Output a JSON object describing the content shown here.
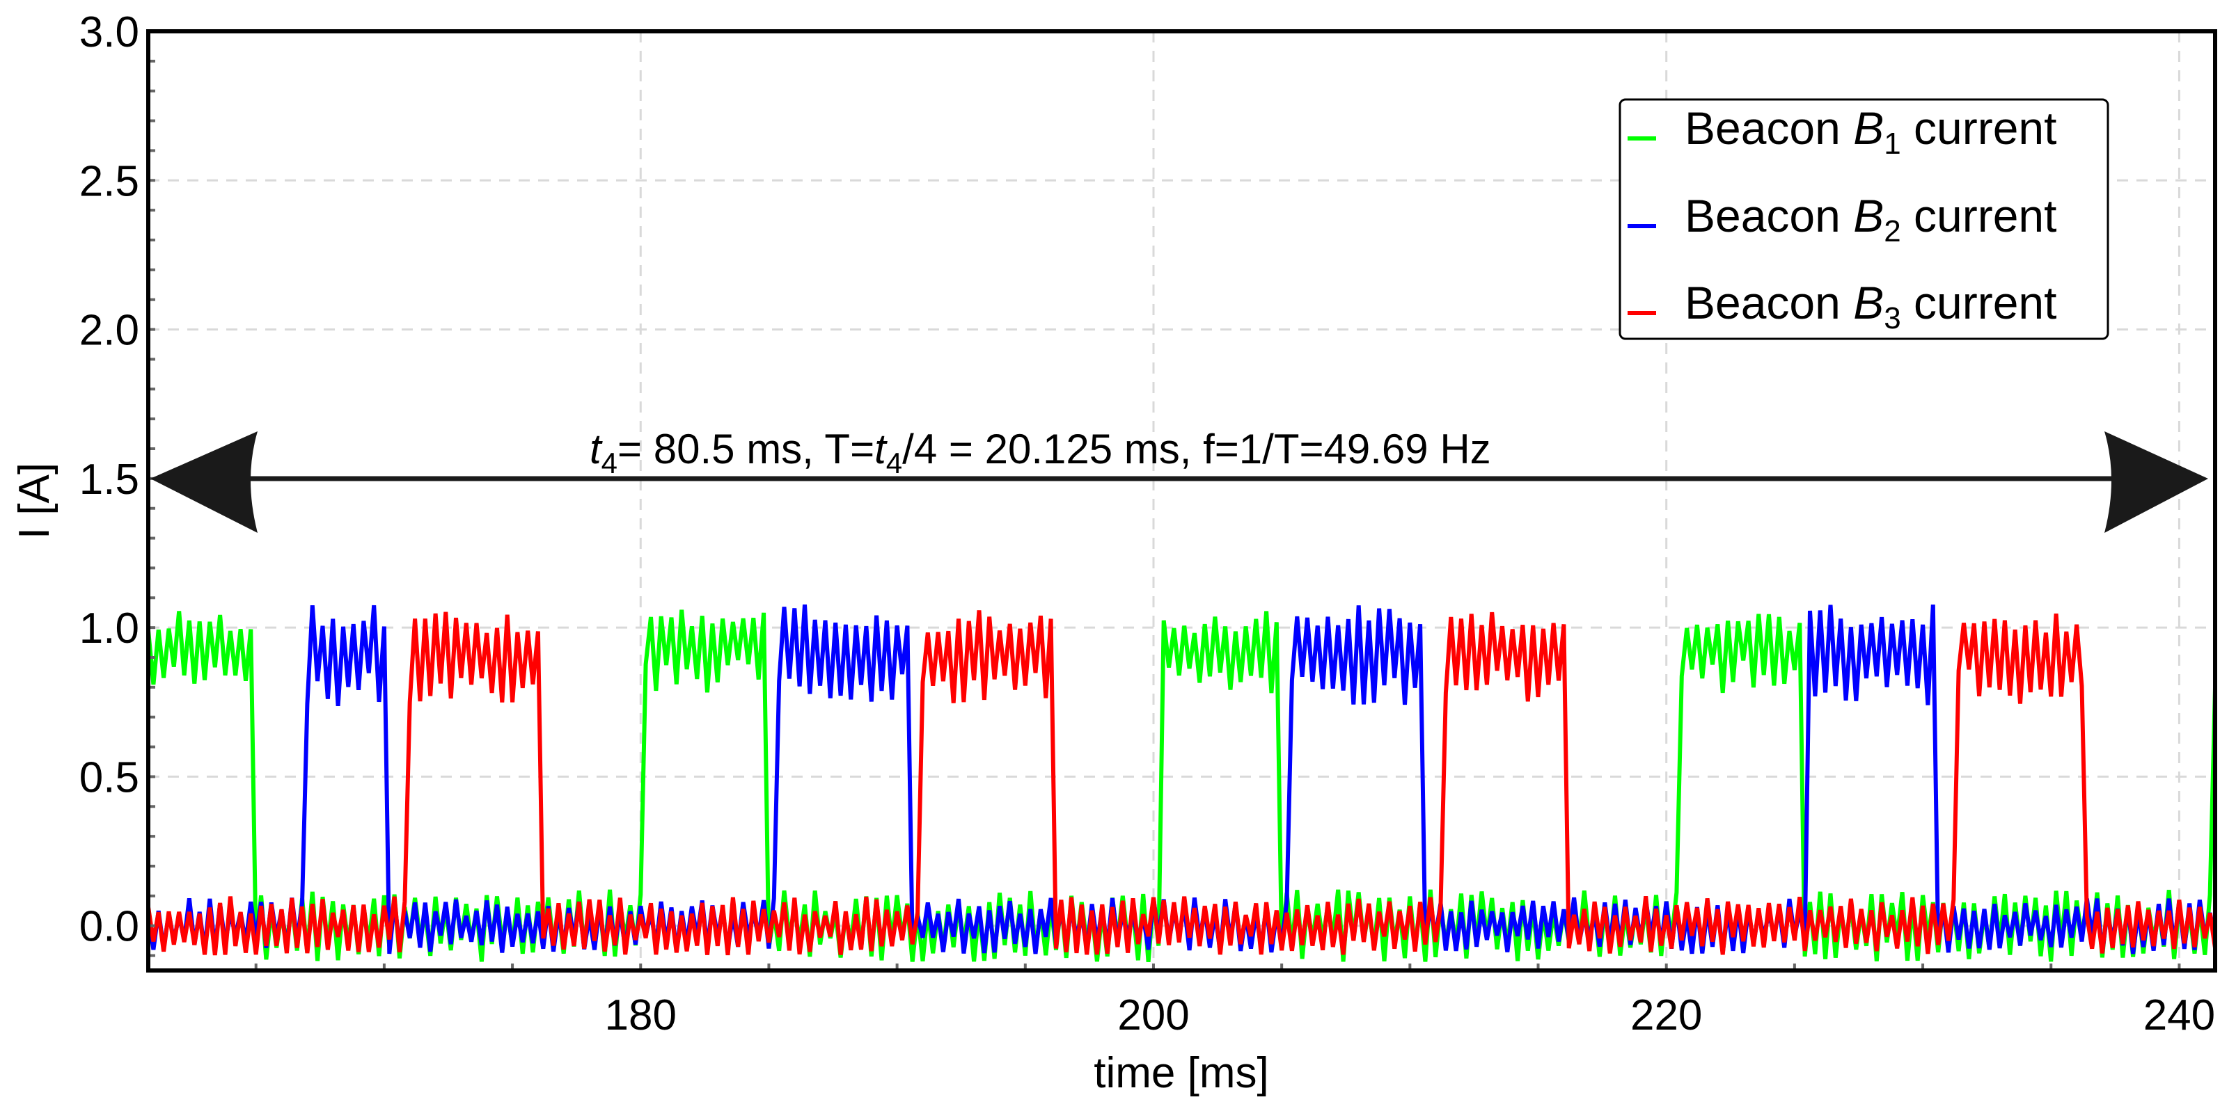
{
  "chart_data": {
    "type": "line",
    "title": "",
    "xlabel": "time [ms]",
    "ylabel": "I [A]",
    "xlim": [
      160.8,
      241.4
    ],
    "ylim": [
      -0.15,
      3.0
    ],
    "x_ticks": [
      180,
      200,
      220,
      240
    ],
    "x_tick_labels": [
      "180",
      "200",
      "220",
      "240"
    ],
    "x_minor_step": 5,
    "y_ticks": [
      0.0,
      0.5,
      1.0,
      1.5,
      2.0,
      2.5,
      3.0
    ],
    "y_tick_labels": [
      "0.0",
      "0.5",
      "1.0",
      "1.5",
      "2.0",
      "2.5",
      "3.0"
    ],
    "y_minor_step": 0.1,
    "grid": true,
    "legend_position": "upper right",
    "series": [
      {
        "name": "Beacon B1 current",
        "legend_main": "Beacon ",
        "legend_var": "B",
        "legend_sub": "1",
        "legend_tail": " current",
        "color": "#00ff00",
        "pulses": [
          [
            160.8,
            164.9
          ],
          [
            180.1,
            184.9
          ],
          [
            200.2,
            204.9
          ],
          [
            220.4,
            225.2
          ],
          [
            241.3,
            241.4
          ]
        ],
        "high_range": [
          0.8,
          1.06
        ],
        "low_range": [
          -0.12,
          0.15
        ]
      },
      {
        "name": "Beacon B2 current",
        "legend_main": "Beacon ",
        "legend_var": "B",
        "legend_sub": "2",
        "legend_tail": " current",
        "color": "#0000ff",
        "pulses": [
          [
            166.9,
            170.1
          ],
          [
            185.2,
            190.4
          ],
          [
            205.2,
            210.4
          ],
          [
            225.5,
            230.5
          ]
        ],
        "high_range": [
          0.75,
          1.08
        ],
        "low_range": [
          -0.12,
          0.09
        ]
      },
      {
        "name": "Beacon B3 current",
        "legend_main": "Beacon ",
        "legend_var": "B",
        "legend_sub": "3",
        "legend_tail": " current",
        "color": "#ff0000",
        "pulses": [
          [
            170.9,
            176.1
          ],
          [
            190.9,
            196.0
          ],
          [
            211.3,
            216.0
          ],
          [
            231.2,
            236.3
          ]
        ],
        "high_range": [
          0.76,
          1.06
        ],
        "low_range": [
          -0.12,
          0.1
        ]
      }
    ],
    "annotations": [
      {
        "type": "double-arrow",
        "x_start": 160.8,
        "x_end": 241.1,
        "y": 1.5,
        "text": "t4= 80.5 ms,  T=t4/4 = 20.125 ms,  f=1/T=49.69 Hz",
        "t4_ms": 80.5,
        "T_ms": 20.125,
        "f_hz": 49.69
      }
    ]
  },
  "annotation": {
    "var": "t",
    "sub": "4",
    "part1": "= 80.5 ms,  T=",
    "part2": "/4 = 20.125 ms,  f=1/T=49.69 Hz"
  },
  "axes": {
    "xlabel": "time [ms]",
    "ylabel": "I [A]"
  }
}
